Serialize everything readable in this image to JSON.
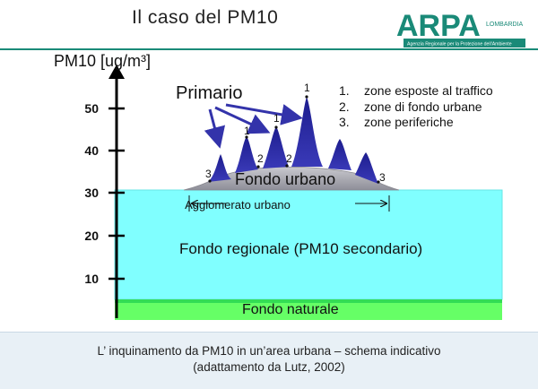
{
  "title": "Il caso del PM10",
  "logo": {
    "name": "ARPA",
    "sub": "LOMBARDIA",
    "tagline": "Agenzia Regionale per la Protezione dell'Ambiente",
    "color_main": "#1a8a78",
    "color_accent": "#8dc63f"
  },
  "diagram": {
    "y_axis_title": "PM10 [ug/m³]",
    "y_ticks": [
      "10",
      "20",
      "30",
      "40",
      "50"
    ],
    "primario_label": "Primario",
    "legend": [
      {
        "n": "1.",
        "text": "zone esposte al traffico"
      },
      {
        "n": "2.",
        "text": "zone di fondo urbane"
      },
      {
        "n": "3.",
        "text": "zone periferiche"
      }
    ],
    "fondo_urbano": "Fondo urbano",
    "agglomerato": "Agglomerato urbano",
    "fondo_regionale": "Fondo regionale (PM10 secondario)",
    "fondo_naturale": "Fondo naturale",
    "point_labels": [
      "1",
      "1",
      "1",
      "2",
      "2",
      "3",
      "3"
    ],
    "colors": {
      "regional": "#80ffff",
      "natural": "#66ff66",
      "urban": "#a6a6ae",
      "peaks": "#2b2ba0",
      "arrow": "#3333aa"
    }
  },
  "caption_line1": "L’ inquinamento da PM10 in un’area urbana – schema indicativo",
  "caption_line2": "(adattamento da Lutz, 2002)"
}
